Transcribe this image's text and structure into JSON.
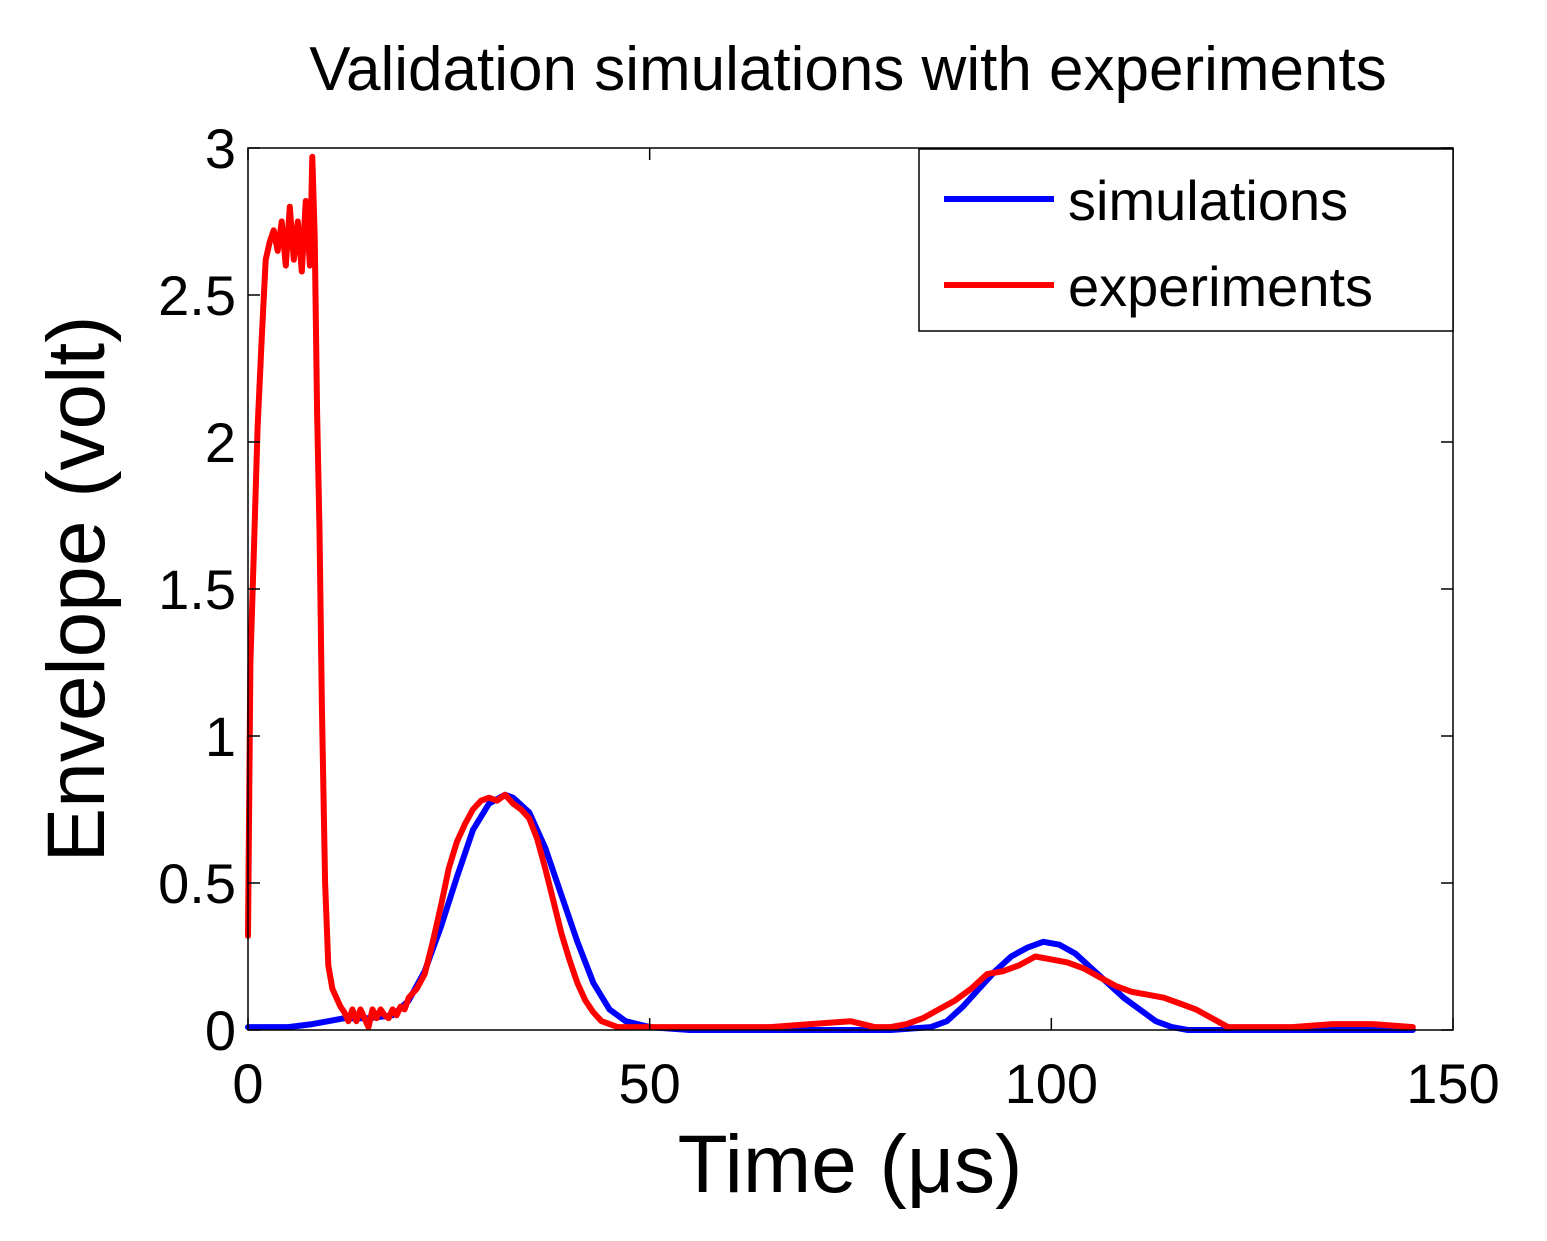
{
  "chart_data": {
    "type": "line",
    "title": "Validation simulations with experiments",
    "xlabel": "Time (μs)",
    "ylabel": "Envelope (volt)",
    "xlim": [
      0,
      150
    ],
    "ylim": [
      0,
      3
    ],
    "xticks": [
      0,
      50,
      100,
      150
    ],
    "yticks": [
      0,
      0.5,
      1,
      1.5,
      2,
      2.5,
      3
    ],
    "xtick_labels": [
      "0",
      "50",
      "100",
      "150"
    ],
    "ytick_labels": [
      "0",
      "0.5",
      "1",
      "1.5",
      "2",
      "2.5",
      "3"
    ],
    "grid": false,
    "legend_position": "top-right",
    "series": [
      {
        "name": "simulations",
        "color": "#0000ff",
        "x": [
          0,
          5,
          8,
          10,
          12,
          15,
          18,
          20,
          22,
          24,
          26,
          28,
          30,
          32,
          33,
          35,
          37,
          39,
          41,
          43,
          45,
          47,
          50,
          55,
          60,
          65,
          70,
          75,
          80,
          85,
          87,
          89,
          91,
          93,
          95,
          97,
          99,
          101,
          103,
          105,
          107,
          109,
          111,
          113,
          115,
          117,
          120,
          125,
          130,
          135,
          140,
          145
        ],
        "y": [
          0.01,
          0.01,
          0.02,
          0.03,
          0.04,
          0.04,
          0.05,
          0.1,
          0.2,
          0.35,
          0.52,
          0.68,
          0.77,
          0.8,
          0.79,
          0.74,
          0.62,
          0.46,
          0.3,
          0.16,
          0.07,
          0.03,
          0.01,
          0.0,
          0.0,
          0.0,
          0.0,
          0.0,
          0.0,
          0.01,
          0.03,
          0.08,
          0.14,
          0.2,
          0.25,
          0.28,
          0.3,
          0.29,
          0.26,
          0.21,
          0.16,
          0.11,
          0.07,
          0.03,
          0.01,
          0.0,
          0.0,
          0.0,
          0.0,
          0.0,
          0.0,
          0.0
        ]
      },
      {
        "name": "experiments",
        "color": "#ff0000",
        "x": [
          0,
          0.3,
          0.7,
          1.2,
          1.7,
          2.2,
          2.7,
          3.2,
          3.7,
          4.2,
          4.7,
          5.2,
          5.7,
          6.2,
          6.7,
          7.2,
          7.7,
          8.0,
          8.3,
          8.6,
          8.9,
          9.2,
          9.6,
          10.0,
          10.5,
          11.0,
          11.5,
          12,
          12.5,
          13,
          13.5,
          14,
          14.5,
          15,
          15.5,
          16,
          16.5,
          17,
          17.5,
          18,
          18.5,
          19,
          19.5,
          20,
          21,
          22,
          23,
          24,
          25,
          26,
          27,
          28,
          29,
          30,
          31,
          32,
          33,
          34,
          35,
          36,
          37,
          38,
          39,
          40,
          41,
          42,
          43,
          44,
          45,
          46,
          47,
          48,
          50,
          55,
          60,
          65,
          70,
          75,
          78,
          80,
          82,
          84,
          86,
          88,
          90,
          92,
          94,
          96,
          98,
          100,
          102,
          104,
          106,
          108,
          110,
          112,
          114,
          116,
          118,
          120,
          122,
          125,
          130,
          135,
          140,
          145
        ],
        "y": [
          0.32,
          1.25,
          1.6,
          2.05,
          2.35,
          2.62,
          2.68,
          2.72,
          2.65,
          2.75,
          2.6,
          2.8,
          2.62,
          2.75,
          2.58,
          2.82,
          2.6,
          2.97,
          2.7,
          2.1,
          1.7,
          1.1,
          0.5,
          0.22,
          0.14,
          0.11,
          0.08,
          0.06,
          0.03,
          0.07,
          0.03,
          0.07,
          0.04,
          0.01,
          0.07,
          0.04,
          0.07,
          0.05,
          0.04,
          0.07,
          0.05,
          0.08,
          0.07,
          0.11,
          0.14,
          0.19,
          0.3,
          0.42,
          0.55,
          0.64,
          0.7,
          0.75,
          0.78,
          0.79,
          0.78,
          0.8,
          0.77,
          0.75,
          0.72,
          0.65,
          0.55,
          0.44,
          0.33,
          0.24,
          0.16,
          0.1,
          0.06,
          0.03,
          0.02,
          0.01,
          0.01,
          0.01,
          0.01,
          0.01,
          0.01,
          0.01,
          0.02,
          0.03,
          0.01,
          0.01,
          0.02,
          0.04,
          0.07,
          0.1,
          0.14,
          0.19,
          0.2,
          0.22,
          0.25,
          0.24,
          0.23,
          0.21,
          0.18,
          0.15,
          0.13,
          0.12,
          0.11,
          0.09,
          0.07,
          0.04,
          0.01,
          0.01,
          0.01,
          0.02,
          0.02,
          0.01
        ]
      }
    ]
  }
}
